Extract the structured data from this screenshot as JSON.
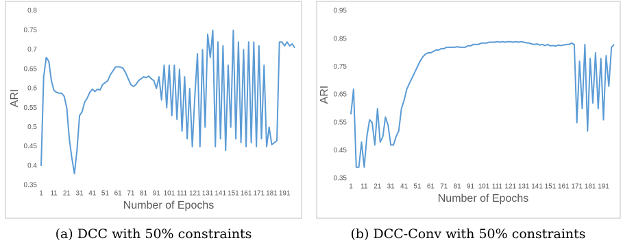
{
  "chart_data": [
    {
      "type": "line",
      "caption": "(a) DCC with 50% constraints",
      "xlabel": "Number of Epochs",
      "ylabel": "ARI",
      "xlim": [
        1,
        200
      ],
      "xticks": [
        1,
        11,
        21,
        31,
        41,
        51,
        61,
        71,
        81,
        91,
        101,
        111,
        121,
        131,
        141,
        151,
        161,
        171,
        181,
        191
      ],
      "ylim": [
        0.35,
        0.8
      ],
      "yticks": [
        0.35,
        0.4,
        0.45,
        0.5,
        0.55,
        0.6,
        0.65,
        0.7,
        0.75,
        0.8
      ],
      "x": [
        1,
        3,
        5,
        7,
        9,
        11,
        13,
        15,
        17,
        19,
        21,
        23,
        25,
        27,
        29,
        31,
        33,
        35,
        37,
        39,
        41,
        43,
        45,
        47,
        49,
        51,
        53,
        55,
        57,
        59,
        61,
        63,
        65,
        67,
        69,
        71,
        73,
        75,
        77,
        79,
        81,
        83,
        85,
        87,
        89,
        91,
        93,
        95,
        97,
        99,
        101,
        103,
        105,
        107,
        109,
        111,
        113,
        115,
        117,
        119,
        121,
        123,
        125,
        127,
        129,
        131,
        133,
        135,
        137,
        139,
        141,
        143,
        145,
        147,
        149,
        151,
        153,
        155,
        157,
        159,
        161,
        163,
        165,
        167,
        169,
        171,
        173,
        175,
        177,
        179,
        181,
        183,
        185,
        187,
        189,
        191,
        193,
        195,
        197,
        199
      ],
      "series": [
        {
          "color": "#5b9bd5",
          "values": [
            0.4,
            0.63,
            0.68,
            0.67,
            0.62,
            0.595,
            0.59,
            0.588,
            0.588,
            0.58,
            0.55,
            0.47,
            0.42,
            0.38,
            0.44,
            0.53,
            0.54,
            0.565,
            0.575,
            0.59,
            0.598,
            0.592,
            0.598,
            0.596,
            0.61,
            0.615,
            0.62,
            0.635,
            0.645,
            0.655,
            0.656,
            0.655,
            0.652,
            0.64,
            0.625,
            0.61,
            0.605,
            0.61,
            0.62,
            0.625,
            0.63,
            0.628,
            0.632,
            0.625,
            0.62,
            0.6,
            0.63,
            0.57,
            0.66,
            0.55,
            0.66,
            0.53,
            0.66,
            0.52,
            0.65,
            0.49,
            0.63,
            0.47,
            0.6,
            0.45,
            0.58,
            0.69,
            0.45,
            0.7,
            0.5,
            0.74,
            0.68,
            0.75,
            0.45,
            0.72,
            0.47,
            0.71,
            0.44,
            0.66,
            0.5,
            0.75,
            0.47,
            0.72,
            0.46,
            0.7,
            0.45,
            0.72,
            0.46,
            0.72,
            0.45,
            0.71,
            0.47,
            0.66,
            0.45,
            0.5,
            0.455,
            0.46,
            0.465,
            0.72,
            0.72,
            0.71,
            0.72,
            0.71,
            0.715,
            0.705
          ]
        }
      ]
    },
    {
      "type": "line",
      "caption": "(b) DCC-Conv with 50% constraints",
      "xlabel": "Number of Epochs",
      "ylabel": "ARI",
      "xlim": [
        1,
        200
      ],
      "xticks": [
        1,
        11,
        21,
        31,
        41,
        51,
        61,
        71,
        81,
        91,
        101,
        111,
        121,
        131,
        141,
        151,
        161,
        171,
        181,
        191
      ],
      "ylim": [
        0.35,
        0.95
      ],
      "yticks": [
        0.35,
        0.45,
        0.55,
        0.65,
        0.75,
        0.85,
        0.95
      ],
      "x": [
        1,
        3,
        5,
        7,
        9,
        11,
        13,
        15,
        17,
        19,
        21,
        23,
        25,
        27,
        29,
        31,
        33,
        35,
        37,
        39,
        41,
        43,
        45,
        47,
        49,
        51,
        53,
        55,
        57,
        59,
        61,
        63,
        65,
        67,
        69,
        71,
        73,
        75,
        77,
        79,
        81,
        83,
        85,
        87,
        89,
        91,
        93,
        95,
        97,
        99,
        101,
        103,
        105,
        107,
        109,
        111,
        113,
        115,
        117,
        119,
        121,
        123,
        125,
        127,
        129,
        131,
        133,
        135,
        137,
        139,
        141,
        143,
        145,
        147,
        149,
        151,
        153,
        155,
        157,
        159,
        161,
        163,
        165,
        167,
        169,
        171,
        173,
        175,
        177,
        179,
        181,
        183,
        185,
        187,
        189,
        191,
        193,
        195,
        197,
        199
      ],
      "series": [
        {
          "color": "#5b9bd5",
          "values": [
            0.58,
            0.67,
            0.39,
            0.39,
            0.48,
            0.39,
            0.5,
            0.56,
            0.55,
            0.47,
            0.6,
            0.48,
            0.5,
            0.57,
            0.54,
            0.47,
            0.47,
            0.5,
            0.52,
            0.6,
            0.63,
            0.67,
            0.69,
            0.71,
            0.73,
            0.75,
            0.77,
            0.785,
            0.795,
            0.8,
            0.8,
            0.805,
            0.81,
            0.81,
            0.815,
            0.815,
            0.82,
            0.82,
            0.82,
            0.82,
            0.822,
            0.82,
            0.82,
            0.82,
            0.825,
            0.825,
            0.83,
            0.83,
            0.83,
            0.835,
            0.835,
            0.835,
            0.838,
            0.838,
            0.838,
            0.84,
            0.838,
            0.84,
            0.838,
            0.84,
            0.84,
            0.838,
            0.84,
            0.838,
            0.84,
            0.838,
            0.836,
            0.835,
            0.832,
            0.83,
            0.832,
            0.828,
            0.83,
            0.826,
            0.83,
            0.825,
            0.826,
            0.824,
            0.828,
            0.826,
            0.828,
            0.83,
            0.83,
            0.835,
            0.83,
            0.55,
            0.77,
            0.6,
            0.83,
            0.52,
            0.78,
            0.62,
            0.8,
            0.6,
            0.78,
            0.56,
            0.79,
            0.68,
            0.82,
            0.83
          ]
        }
      ]
    }
  ]
}
